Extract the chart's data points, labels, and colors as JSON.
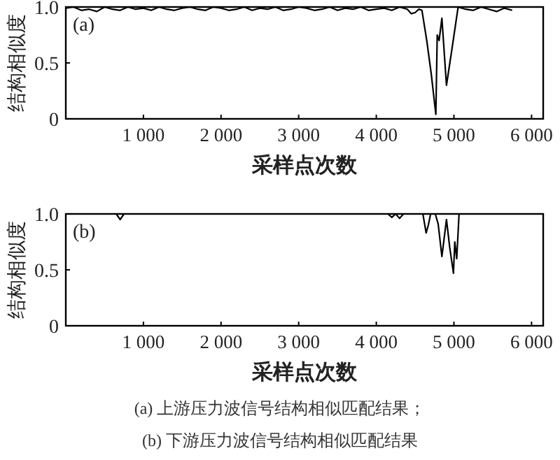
{
  "chart_data": [
    {
      "type": "line",
      "ylabel": "结构相似度",
      "xlabel": "采样点次数",
      "annotations": [
        "(a)",
        "(a) 上游压力波信号结构相似匹配结果；"
      ],
      "xlim": [
        0,
        6150
      ],
      "ylim": [
        0,
        1
      ],
      "xticks": [
        {
          "value": 1000,
          "label": "1 000"
        },
        {
          "value": 2000,
          "label": "2 000"
        },
        {
          "value": 3000,
          "label": "3 000"
        },
        {
          "value": 4000,
          "label": "4 000"
        },
        {
          "value": 5000,
          "label": "5 000"
        },
        {
          "value": 6000,
          "label": "6 000"
        }
      ],
      "yticks": [
        {
          "value": 0,
          "label": "0"
        },
        {
          "value": 0.5,
          "label": "0.5"
        },
        {
          "value": 1,
          "label": "1.0"
        }
      ],
      "series": [
        {
          "color": "#000000",
          "x": [
            0,
            100,
            200,
            300,
            400,
            500,
            600,
            700,
            800,
            900,
            1000,
            1100,
            1200,
            1300,
            1400,
            1500,
            1600,
            1700,
            1800,
            1900,
            2000,
            2100,
            2200,
            2300,
            2400,
            2500,
            2600,
            2700,
            2800,
            2900,
            3000,
            3100,
            3200,
            3300,
            3400,
            3500,
            3600,
            3700,
            3800,
            3900,
            4000,
            4100,
            4200,
            4300,
            4400,
            4450,
            4500,
            4550,
            4588,
            4650,
            4708,
            4767,
            4785,
            4809,
            4845,
            4904,
            4980,
            5054,
            5150,
            5250,
            5350,
            5450,
            5550,
            5650,
            5750
          ],
          "values": [
            0.99,
            1,
            0.97,
            0.98,
            0.96,
            1,
            0.98,
            0.97,
            1,
            0.98,
            0.99,
            0.97,
            1,
            0.98,
            0.97,
            0.99,
            1,
            0.98,
            0.97,
            1,
            0.99,
            0.97,
            0.98,
            1,
            0.97,
            0.99,
            0.98,
            1,
            0.97,
            0.98,
            1,
            0.99,
            0.97,
            0.98,
            1,
            0.97,
            0.99,
            0.98,
            1,
            0.97,
            0.98,
            0.99,
            0.97,
            1,
            0.98,
            0.94,
            0.95,
            0.98,
            0.97,
            0.7,
            0.4,
            0.04,
            0.75,
            0.7,
            0.9,
            0.3,
            0.65,
            1,
            0.98,
            0.97,
            1,
            0.98,
            0.96,
            0.99,
            0.97
          ]
        }
      ]
    },
    {
      "type": "line",
      "ylabel": "结构相似度",
      "xlabel": "采样点次数",
      "annotations": [
        "(b)",
        "(b) 下游压力波信号结构相似匹配结果"
      ],
      "xlim": [
        0,
        6150
      ],
      "ylim": [
        0,
        1
      ],
      "xticks": [
        {
          "value": 1000,
          "label": "1 000"
        },
        {
          "value": 2000,
          "label": "2 000"
        },
        {
          "value": 3000,
          "label": "3 000"
        },
        {
          "value": 4000,
          "label": "4 000"
        },
        {
          "value": 5000,
          "label": "5 000"
        },
        {
          "value": 6000,
          "label": "6 000"
        }
      ],
      "yticks": [
        {
          "value": 0,
          "label": "0"
        },
        {
          "value": 0.5,
          "label": "0.5"
        },
        {
          "value": 1,
          "label": "1.0"
        }
      ],
      "series": [
        {
          "color": "#000000",
          "x": [
            0,
            650,
            700,
            750,
            4150,
            4200,
            4250,
            4300,
            4350,
            4600,
            4642,
            4670,
            4700,
            4760,
            4797,
            4845,
            4904,
            4946,
            4994,
            5011,
            5036,
            5066,
            5800
          ],
          "values": [
            1,
            1,
            0.95,
            1,
            1,
            0.97,
            1,
            0.96,
            1,
            1,
            0.83,
            0.9,
            1,
            1,
            0.91,
            0.62,
            0.95,
            0.7,
            0.47,
            0.75,
            0.6,
            1,
            1
          ]
        }
      ]
    }
  ]
}
